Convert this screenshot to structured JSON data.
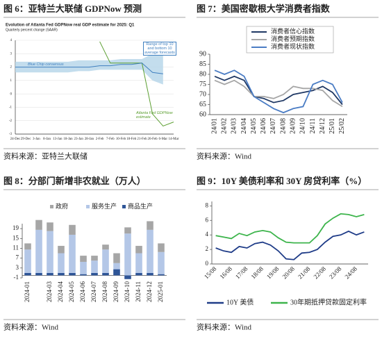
{
  "chart_data": [
    {
      "type": "line",
      "heading": "图 6：亚特兰大联储 GDPNow 预测",
      "title": "Evolution of Atlanta Fed GDPNow real GDP estimate for 2025: Q1",
      "subtitle": "Quarterly percent change (SAAR)",
      "source": "资料来源：亚特兰大联储",
      "categories": [
        "24-Dec",
        "29-Dec",
        "3-Jan",
        "8-Jan",
        "13-Jan",
        "18-Jan",
        "23-Jan",
        "28-Jan",
        "2-Feb",
        "7-Feb",
        "10-Feb",
        "18-Feb",
        "21-Feb",
        "26-Feb",
        "6-Mar",
        "14-Mar"
      ],
      "series": [
        {
          "name": "Atlanta Fed GDPNow estimate",
          "color": "#5a9e2f",
          "values": [
            null,
            null,
            null,
            null,
            null,
            null,
            null,
            null,
            3.9,
            2.3,
            2.3,
            2.3,
            2.3,
            -1.5,
            -2.4,
            -2.1
          ]
        },
        {
          "name": "Blue Chip consensus",
          "color": "#3f7fbf",
          "values": [
            2.0,
            2.0,
            2.0,
            2.0,
            2.0,
            2.0,
            2.0,
            2.0,
            2.1,
            2.1,
            2.2,
            2.2,
            2.3,
            1.6,
            1.5,
            null
          ]
        }
      ],
      "band": {
        "name": "Range of top 10 and bottom 10 average forecasts",
        "color": "#b9d7ea",
        "low": [
          1.6,
          1.6,
          1.6,
          1.6,
          1.6,
          1.6,
          1.7,
          1.7,
          1.8,
          1.8,
          1.8,
          1.8,
          1.8,
          1.0,
          0.7,
          null
        ],
        "high": [
          2.4,
          2.4,
          2.4,
          2.4,
          2.4,
          2.4,
          2.5,
          2.5,
          2.5,
          2.5,
          2.6,
          2.6,
          2.6,
          3.0,
          3.1,
          null
        ]
      },
      "ylim": [
        -3,
        4
      ],
      "yticks": [
        -3,
        -2,
        -1,
        0,
        1,
        2,
        3,
        4
      ],
      "grid": true
    },
    {
      "type": "line",
      "heading": "图 7：美国密歇根大学消费者指数",
      "source": "资料来源：Wind",
      "categories": [
        "24/01",
        "24/02",
        "24/03",
        "24/04",
        "24/05",
        "24/06",
        "24/07",
        "24/08",
        "24/09",
        "24/10",
        "24/11",
        "24/12",
        "25/01",
        "25/02"
      ],
      "series": [
        {
          "name": "消费者信心指数",
          "color": "#1f3864",
          "values": [
            79,
            77,
            79,
            77,
            69,
            68,
            66,
            67,
            70,
            71,
            72,
            74,
            71,
            65
          ]
        },
        {
          "name": "消费者预期指数",
          "color": "#a6a6a6",
          "values": [
            77,
            75,
            77,
            74,
            69,
            69,
            68,
            70,
            74,
            73,
            73,
            72,
            67,
            64
          ]
        },
        {
          "name": "消费者现状指数",
          "color": "#4a7cc4",
          "values": [
            82,
            80,
            82,
            79,
            69,
            66,
            63,
            61,
            63,
            64,
            75,
            77,
            75,
            66
          ]
        }
      ],
      "ylim": [
        60,
        90
      ],
      "yticks": [
        60,
        65,
        70,
        75,
        80,
        85,
        90
      ],
      "grid": false
    },
    {
      "type": "bar",
      "heading": "图 8：分部门新增非农就业（万人）",
      "source": "资料来源：Wind",
      "categories": [
        "2024-01",
        null,
        "2024-03",
        "2024-04",
        "2024-05",
        "2024-06",
        "2024-07",
        "2024-08",
        "2024-09",
        "2024-10",
        "2024-11",
        "2024-12",
        "2025-01"
      ],
      "series": [
        {
          "name": "政府",
          "color": "#a6a6a6",
          "values": [
            2.5,
            4,
            3.5,
            3,
            4,
            2.5,
            2,
            2,
            4,
            2.5,
            3,
            3.5,
            3.5
          ]
        },
        {
          "name": "服务生产",
          "color": "#b4c7e7",
          "values": [
            9.5,
            17.5,
            17,
            8,
            15.5,
            5,
            5,
            9.5,
            2.5,
            17,
            8,
            17.5,
            9
          ]
        },
        {
          "name": "商品生产",
          "color": "#2e5597",
          "values": [
            1,
            1,
            1,
            1,
            1,
            0.5,
            1,
            1,
            2.5,
            -1.5,
            1,
            1,
            0.5
          ]
        }
      ],
      "ylim": [
        -1,
        21
      ],
      "yticks": [
        -1,
        3,
        7,
        11,
        15,
        19
      ],
      "grid": false
    },
    {
      "type": "line",
      "heading": "图 9：10Y 美债利率和 30Y 房贷利率（%）",
      "source": "资料来源：Wind",
      "categories": [
        "15/08",
        null,
        "16/08",
        null,
        "17/08",
        null,
        "18/08",
        null,
        "19/08",
        null,
        "20/08",
        null,
        "21/08",
        null,
        "22/08",
        null,
        "23/08",
        null,
        "24/08",
        null
      ],
      "series": [
        {
          "name": "10Y 美债",
          "color": "#1f3c88",
          "values": [
            2.2,
            1.8,
            1.6,
            2.4,
            2.2,
            2.8,
            3.0,
            2.6,
            1.8,
            0.7,
            0.6,
            1.5,
            1.6,
            2.0,
            3.0,
            3.8,
            4.0,
            4.5,
            4.0,
            4.4
          ]
        },
        {
          "name": "30年期抵押贷款固定利率",
          "color": "#3cb44b",
          "values": [
            3.9,
            3.7,
            3.5,
            4.2,
            3.9,
            4.4,
            4.6,
            4.4,
            3.6,
            3.0,
            2.9,
            2.9,
            2.9,
            3.9,
            5.5,
            6.3,
            6.9,
            6.8,
            6.5,
            6.8
          ]
        }
      ],
      "ylim": [
        0,
        8.6
      ],
      "yticks": [
        0,
        2,
        4,
        6,
        8
      ],
      "grid": false
    }
  ]
}
